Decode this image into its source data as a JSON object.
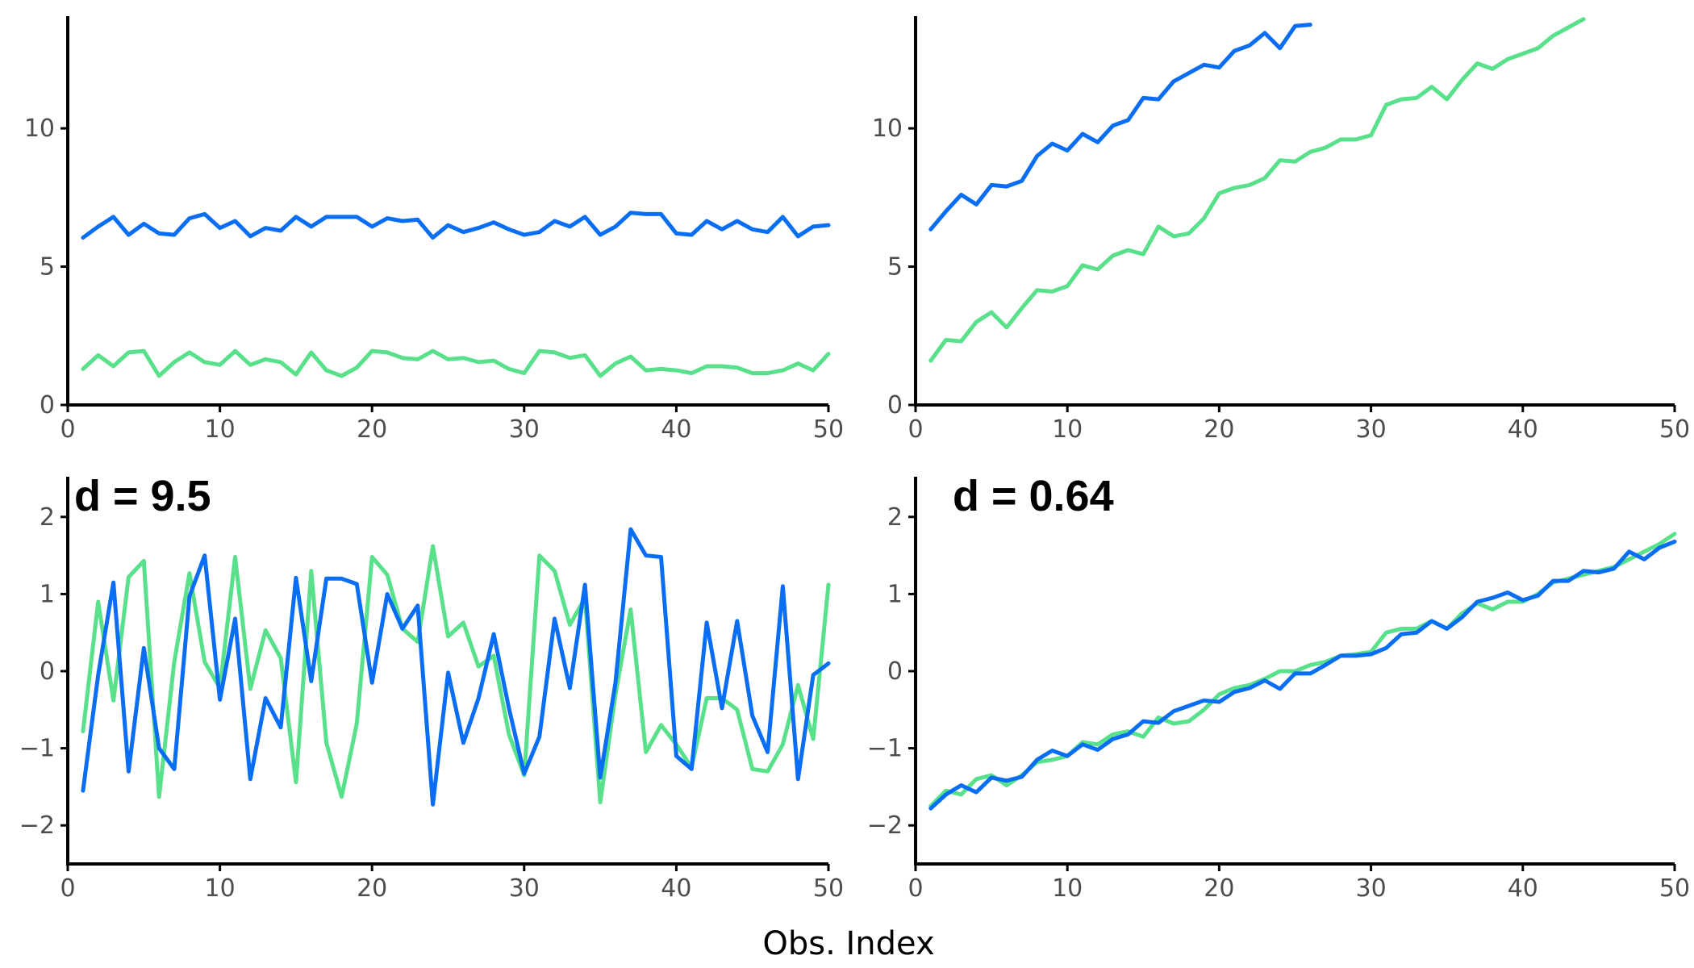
{
  "colors": {
    "series_a": "#59e08a",
    "series_b": "#0a6ef5"
  },
  "figure": {
    "xlabel": "Obs. Index"
  },
  "chart_data": [
    {
      "type": "line",
      "panel": "top-left",
      "annotation": "",
      "xlim": [
        0,
        50
      ],
      "ylim": [
        0,
        14
      ],
      "xticks": [
        0,
        10,
        20,
        30,
        40,
        50
      ],
      "yticks": [
        0,
        5,
        10
      ],
      "grid": false,
      "series": [
        {
          "color_key": "series_a",
          "x": [
            1,
            2,
            3,
            4,
            5,
            6,
            7,
            8,
            9,
            10,
            11,
            12,
            13,
            14,
            15,
            16,
            17,
            18,
            19,
            20,
            21,
            22,
            23,
            24,
            25,
            26,
            27,
            28,
            29,
            30,
            31,
            32,
            33,
            34,
            35,
            36,
            37,
            38,
            39,
            40,
            41,
            42,
            43,
            44,
            45,
            46,
            47,
            48,
            49,
            50
          ],
          "y": [
            1.3,
            1.8,
            1.4,
            1.9,
            1.95,
            1.05,
            1.55,
            1.9,
            1.55,
            1.45,
            1.95,
            1.45,
            1.65,
            1.55,
            1.1,
            1.9,
            1.25,
            1.05,
            1.35,
            1.95,
            1.9,
            1.7,
            1.65,
            1.95,
            1.65,
            1.7,
            1.55,
            1.6,
            1.3,
            1.15,
            1.95,
            1.9,
            1.7,
            1.8,
            1.05,
            1.5,
            1.75,
            1.25,
            1.3,
            1.25,
            1.15,
            1.4,
            1.4,
            1.35,
            1.15,
            1.15,
            1.25,
            1.5,
            1.25,
            1.85
          ]
        },
        {
          "color_key": "series_b",
          "x": [
            1,
            2,
            3,
            4,
            5,
            6,
            7,
            8,
            9,
            10,
            11,
            12,
            13,
            14,
            15,
            16,
            17,
            18,
            19,
            20,
            21,
            22,
            23,
            24,
            25,
            26,
            27,
            28,
            29,
            30,
            31,
            32,
            33,
            34,
            35,
            36,
            37,
            38,
            39,
            40,
            41,
            42,
            43,
            44,
            45,
            46,
            47,
            48,
            49,
            50
          ],
          "y": [
            6.05,
            6.45,
            6.8,
            6.15,
            6.55,
            6.2,
            6.15,
            6.75,
            6.9,
            6.4,
            6.65,
            6.1,
            6.4,
            6.3,
            6.8,
            6.45,
            6.8,
            6.8,
            6.8,
            6.45,
            6.75,
            6.65,
            6.7,
            6.05,
            6.5,
            6.25,
            6.4,
            6.6,
            6.35,
            6.15,
            6.25,
            6.65,
            6.45,
            6.8,
            6.15,
            6.45,
            6.95,
            6.9,
            6.9,
            6.2,
            6.15,
            6.65,
            6.35,
            6.65,
            6.35,
            6.25,
            6.8,
            6.1,
            6.45,
            6.5
          ]
        }
      ]
    },
    {
      "type": "line",
      "panel": "top-right",
      "annotation": "",
      "xlim": [
        0,
        50
      ],
      "ylim": [
        0,
        14
      ],
      "xticks": [
        0,
        10,
        20,
        30,
        40,
        50
      ],
      "yticks": [
        0,
        5,
        10
      ],
      "grid": false,
      "series": [
        {
          "color_key": "series_a",
          "x": [
            1,
            2,
            3,
            4,
            5,
            6,
            7,
            8,
            9,
            10,
            11,
            12,
            13,
            14,
            15,
            16,
            17,
            18,
            19,
            20,
            21,
            22,
            23,
            24,
            25,
            26,
            27,
            28,
            29,
            30,
            31,
            32,
            33,
            34,
            35,
            36,
            37,
            38,
            39,
            40,
            41,
            42,
            43,
            44
          ],
          "y": [
            1.6,
            2.35,
            2.3,
            3.0,
            3.35,
            2.8,
            3.5,
            4.15,
            4.1,
            4.3,
            5.05,
            4.9,
            5.4,
            5.6,
            5.45,
            6.45,
            6.1,
            6.2,
            6.75,
            7.65,
            7.85,
            7.95,
            8.2,
            8.85,
            8.8,
            9.15,
            9.3,
            9.6,
            9.6,
            9.75,
            10.85,
            11.05,
            11.1,
            11.5,
            11.05,
            11.75,
            12.35,
            12.15,
            12.5,
            12.7,
            12.9,
            13.35,
            13.65,
            13.95
          ]
        },
        {
          "color_key": "series_b",
          "x": [
            1,
            2,
            3,
            4,
            5,
            6,
            7,
            8,
            9,
            10,
            11,
            12,
            13,
            14,
            15,
            16,
            17,
            18,
            19,
            20,
            21,
            22,
            23,
            24,
            25,
            26
          ],
          "y": [
            6.35,
            7.0,
            7.6,
            7.25,
            7.95,
            7.9,
            8.1,
            9.0,
            9.45,
            9.2,
            9.8,
            9.5,
            10.1,
            10.3,
            11.1,
            11.05,
            11.7,
            12.0,
            12.3,
            12.2,
            12.8,
            13.0,
            13.45,
            12.9,
            13.7,
            13.75
          ]
        }
      ]
    },
    {
      "type": "line",
      "panel": "bottom-left",
      "annotation": "d = 9.5",
      "xlim": [
        0,
        50
      ],
      "ylim": [
        -2.5,
        2.5
      ],
      "xticks": [
        0,
        10,
        20,
        30,
        40,
        50
      ],
      "yticks": [
        -2,
        -1,
        0,
        1,
        2
      ],
      "grid": false,
      "series": [
        {
          "color_key": "series_a",
          "x": [
            1,
            2,
            3,
            4,
            5,
            6,
            7,
            8,
            9,
            10,
            11,
            12,
            13,
            14,
            15,
            16,
            17,
            18,
            19,
            20,
            21,
            22,
            23,
            24,
            25,
            26,
            27,
            28,
            29,
            30,
            31,
            32,
            33,
            34,
            35,
            36,
            37,
            38,
            39,
            40,
            41,
            42,
            43,
            44,
            45,
            46,
            47,
            48,
            49,
            50
          ],
          "y": [
            -0.78,
            0.9,
            -0.38,
            1.22,
            1.43,
            -1.63,
            0.12,
            1.27,
            0.12,
            -0.22,
            1.48,
            -0.23,
            0.53,
            0.17,
            -1.44,
            1.3,
            -0.93,
            -1.63,
            -0.68,
            1.48,
            1.25,
            0.55,
            0.38,
            1.62,
            0.45,
            0.63,
            0.06,
            0.2,
            -0.82,
            -1.35,
            1.5,
            1.3,
            0.6,
            0.95,
            -1.7,
            -0.3,
            0.8,
            -1.05,
            -0.7,
            -0.95,
            -1.25,
            -0.35,
            -0.35,
            -0.5,
            -1.27,
            -1.3,
            -0.95,
            -0.18,
            -0.88,
            1.12
          ]
        },
        {
          "color_key": "series_b",
          "x": [
            1,
            2,
            3,
            4,
            5,
            6,
            7,
            8,
            9,
            10,
            11,
            12,
            13,
            14,
            15,
            16,
            17,
            18,
            19,
            20,
            21,
            22,
            23,
            24,
            25,
            26,
            27,
            28,
            29,
            30,
            31,
            32,
            33,
            34,
            35,
            36,
            37,
            38,
            39,
            40,
            41,
            42,
            43,
            44,
            45,
            46,
            47,
            48,
            49,
            50
          ],
          "y": [
            -1.55,
            -0.05,
            1.15,
            -1.3,
            0.3,
            -1.0,
            -1.27,
            0.97,
            1.5,
            -0.37,
            0.68,
            -1.4,
            -0.35,
            -0.73,
            1.21,
            -0.13,
            1.2,
            1.2,
            1.13,
            -0.15,
            1.0,
            0.55,
            0.85,
            -1.73,
            -0.02,
            -0.93,
            -0.35,
            0.48,
            -0.48,
            -1.33,
            -0.85,
            0.68,
            -0.22,
            1.12,
            -1.38,
            -0.15,
            1.84,
            1.5,
            1.48,
            -1.1,
            -1.27,
            0.63,
            -0.48,
            0.65,
            -0.58,
            -1.05,
            1.1,
            -1.4,
            -0.05,
            0.1
          ]
        }
      ]
    },
    {
      "type": "line",
      "panel": "bottom-right",
      "annotation": "d = 0.64",
      "xlim": [
        0,
        50
      ],
      "ylim": [
        -2.5,
        2.5
      ],
      "xticks": [
        0,
        10,
        20,
        30,
        40,
        50
      ],
      "yticks": [
        -2,
        -1,
        0,
        1,
        2
      ],
      "grid": false,
      "series": [
        {
          "color_key": "series_a",
          "x": [
            1,
            2,
            3,
            4,
            5,
            6,
            7,
            8,
            9,
            10,
            11,
            12,
            13,
            14,
            15,
            16,
            17,
            18,
            19,
            20,
            21,
            22,
            23,
            24,
            25,
            26,
            27,
            28,
            29,
            30,
            31,
            32,
            33,
            34,
            35,
            36,
            37,
            38,
            39,
            40,
            41,
            42,
            43,
            44,
            45,
            46,
            47,
            48,
            49,
            50
          ],
          "y": [
            -1.75,
            -1.55,
            -1.6,
            -1.4,
            -1.35,
            -1.48,
            -1.35,
            -1.18,
            -1.15,
            -1.1,
            -0.92,
            -0.95,
            -0.82,
            -0.78,
            -0.85,
            -0.6,
            -0.68,
            -0.65,
            -0.5,
            -0.3,
            -0.22,
            -0.18,
            -0.1,
            0.0,
            0.0,
            0.08,
            0.12,
            0.2,
            0.22,
            0.25,
            0.5,
            0.55,
            0.55,
            0.65,
            0.55,
            0.75,
            0.88,
            0.8,
            0.9,
            0.9,
            1.0,
            1.15,
            1.2,
            1.25,
            1.3,
            1.35,
            1.45,
            1.55,
            1.65,
            1.78
          ]
        },
        {
          "color_key": "series_b",
          "x": [
            1,
            2,
            3,
            4,
            5,
            6,
            7,
            8,
            9,
            10,
            11,
            12,
            13,
            14,
            15,
            16,
            17,
            18,
            19,
            20,
            21,
            22,
            23,
            24,
            25,
            26,
            27,
            28,
            29,
            30,
            31,
            32,
            33,
            34,
            35,
            36,
            37,
            38,
            39,
            40,
            41,
            42,
            43,
            44,
            45,
            46,
            47,
            48,
            49,
            50
          ],
          "y": [
            -1.78,
            -1.6,
            -1.48,
            -1.57,
            -1.38,
            -1.42,
            -1.37,
            -1.15,
            -1.03,
            -1.1,
            -0.95,
            -1.02,
            -0.88,
            -0.82,
            -0.65,
            -0.67,
            -0.52,
            -0.45,
            -0.38,
            -0.4,
            -0.27,
            -0.22,
            -0.12,
            -0.23,
            -0.03,
            -0.03,
            0.08,
            0.2,
            0.2,
            0.22,
            0.3,
            0.48,
            0.5,
            0.65,
            0.55,
            0.7,
            0.9,
            0.95,
            1.02,
            0.92,
            0.98,
            1.17,
            1.17,
            1.3,
            1.28,
            1.33,
            1.55,
            1.45,
            1.6,
            1.68
          ]
        }
      ]
    }
  ]
}
